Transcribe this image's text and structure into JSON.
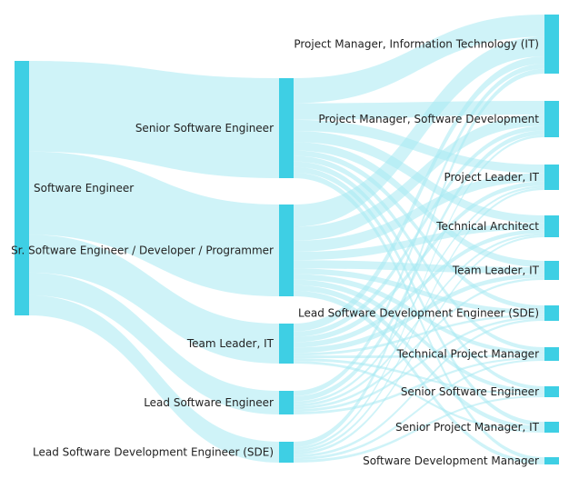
{
  "colors": {
    "node": "#3ecfe4",
    "link": "#a8e9f3",
    "text": "#222222",
    "background": "#ffffff"
  },
  "nodes": [
    {
      "id": "se",
      "label": "Software Engineer"
    },
    {
      "id": "sse",
      "label": "Senior Software Engineer"
    },
    {
      "id": "ssedp",
      "label": "Sr. Software Engineer / Developer / Programmer"
    },
    {
      "id": "tl",
      "label": "Team Leader, IT"
    },
    {
      "id": "lse",
      "label": "Lead Software Engineer"
    },
    {
      "id": "lsde",
      "label": "Lead Software Development Engineer (SDE)"
    },
    {
      "id": "pmit",
      "label": "Project Manager, Information Technology (IT)"
    },
    {
      "id": "pmsd",
      "label": "Project Manager, Software Development"
    },
    {
      "id": "plit",
      "label": "Project Leader, IT"
    },
    {
      "id": "ta",
      "label": "Technical Architect"
    },
    {
      "id": "tlit",
      "label": "Team Leader, IT"
    },
    {
      "id": "lsde2",
      "label": "Lead Software Development Engineer (SDE)"
    },
    {
      "id": "tpm",
      "label": "Technical Project Manager"
    },
    {
      "id": "sse2",
      "label": "Senior Software Engineer"
    },
    {
      "id": "spm",
      "label": "Senior Project Manager, IT"
    },
    {
      "id": "sdm",
      "label": "Software Development Manager"
    }
  ],
  "links": [
    {
      "source": "se",
      "target": "sse",
      "value": 36
    },
    {
      "source": "se",
      "target": "ssedp",
      "value": 33
    },
    {
      "source": "se",
      "target": "tl",
      "value": 15
    },
    {
      "source": "se",
      "target": "lse",
      "value": 9
    },
    {
      "source": "se",
      "target": "lsde",
      "value": 8
    },
    {
      "source": "sse",
      "target": "pmit",
      "value": 9
    },
    {
      "source": "sse",
      "target": "pmsd",
      "value": 6
    },
    {
      "source": "sse",
      "target": "plit",
      "value": 4
    },
    {
      "source": "sse",
      "target": "ta",
      "value": 4
    },
    {
      "source": "sse",
      "target": "tlit",
      "value": 3
    },
    {
      "source": "sse",
      "target": "lsde2",
      "value": 2
    },
    {
      "source": "sse",
      "target": "tpm",
      "value": 2
    },
    {
      "source": "sse",
      "target": "sse2",
      "value": 2
    },
    {
      "source": "sse",
      "target": "spm",
      "value": 2
    },
    {
      "source": "sse",
      "target": "sdm",
      "value": 2
    },
    {
      "source": "ssedp",
      "target": "pmit",
      "value": 8
    },
    {
      "source": "ssedp",
      "target": "pmsd",
      "value": 5
    },
    {
      "source": "ssedp",
      "target": "plit",
      "value": 4
    },
    {
      "source": "ssedp",
      "target": "ta",
      "value": 3
    },
    {
      "source": "ssedp",
      "target": "tlit",
      "value": 3
    },
    {
      "source": "ssedp",
      "target": "lsde2",
      "value": 2
    },
    {
      "source": "ssedp",
      "target": "tpm",
      "value": 2
    },
    {
      "source": "ssedp",
      "target": "sse2",
      "value": 2
    },
    {
      "source": "ssedp",
      "target": "spm",
      "value": 2
    },
    {
      "source": "ssedp",
      "target": "sdm",
      "value": 2
    },
    {
      "source": "tl",
      "target": "pmit",
      "value": 3
    },
    {
      "source": "tl",
      "target": "pmsd",
      "value": 2
    },
    {
      "source": "tl",
      "target": "plit",
      "value": 2
    },
    {
      "source": "tl",
      "target": "ta",
      "value": 2
    },
    {
      "source": "tl",
      "target": "tlit",
      "value": 2
    },
    {
      "source": "tl",
      "target": "lsde2",
      "value": 1
    },
    {
      "source": "tl",
      "target": "tpm",
      "value": 1
    },
    {
      "source": "tl",
      "target": "sse2",
      "value": 1
    },
    {
      "source": "tl",
      "target": "spm",
      "value": 1
    },
    {
      "source": "lse",
      "target": "pmit",
      "value": 2
    },
    {
      "source": "lse",
      "target": "pmsd",
      "value": 2
    },
    {
      "source": "lse",
      "target": "plit",
      "value": 1
    },
    {
      "source": "lse",
      "target": "ta",
      "value": 1
    },
    {
      "source": "lse",
      "target": "tlit",
      "value": 1
    },
    {
      "source": "lse",
      "target": "lsde2",
      "value": 1
    },
    {
      "source": "lse",
      "target": "tpm",
      "value": 1
    },
    {
      "source": "lsde",
      "target": "pmit",
      "value": 2
    },
    {
      "source": "lsde",
      "target": "pmsd",
      "value": 1
    },
    {
      "source": "lsde",
      "target": "plit",
      "value": 1
    },
    {
      "source": "lsde",
      "target": "ta",
      "value": 1
    },
    {
      "source": "lsde",
      "target": "lsde2",
      "value": 1
    },
    {
      "source": "lsde",
      "target": "tpm",
      "value": 1
    },
    {
      "source": "lsde",
      "target": "sse2",
      "value": 1
    }
  ]
}
